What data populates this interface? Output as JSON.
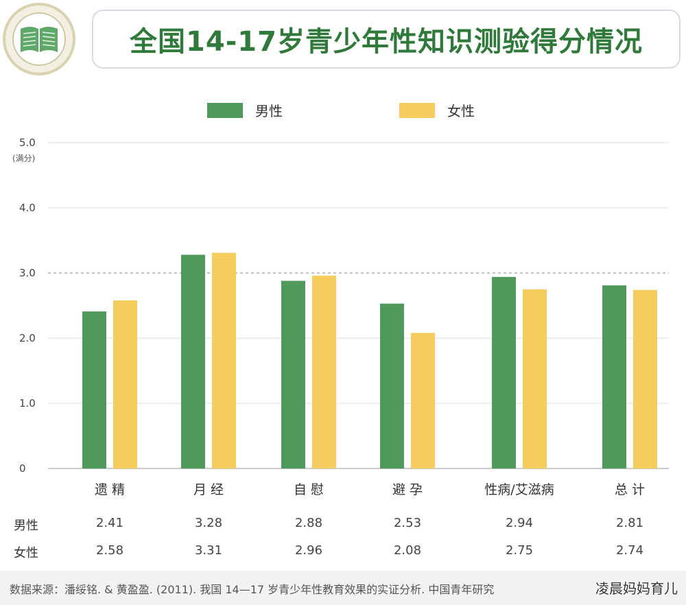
{
  "title": "全国14-17岁青少年性知识测验得分情况",
  "icons": {
    "logo": "open-book-icon"
  },
  "colors": {
    "male": "#4f9a5b",
    "female": "#f5cd5e",
    "title": "#2f7a3a"
  },
  "legend": [
    {
      "label": "男性",
      "color": "#4f9a5b"
    },
    {
      "label": "女性",
      "color": "#f5cd5e"
    }
  ],
  "chart_data": {
    "type": "bar",
    "categories": [
      "遗 精",
      "月 经",
      "自 慰",
      "避 孕",
      "性病/艾滋病",
      "总 计"
    ],
    "series": [
      {
        "name": "男性",
        "values": [
          2.41,
          3.28,
          2.88,
          2.53,
          2.94,
          2.81
        ]
      },
      {
        "name": "女性",
        "values": [
          2.58,
          3.31,
          2.96,
          2.08,
          2.75,
          2.74
        ]
      }
    ],
    "ylim": [
      0,
      5
    ],
    "yticks": [
      "0",
      "1.0",
      "2.0",
      "3.0",
      "4.0",
      "5.0"
    ],
    "ymax_note": "(满分)",
    "reference_line": 3.0,
    "grid": true,
    "legend_position": "top"
  },
  "table": {
    "rows": [
      {
        "label": "男性",
        "values": [
          "2.41",
          "3.28",
          "2.88",
          "2.53",
          "2.94",
          "2.81"
        ]
      },
      {
        "label": "女性",
        "values": [
          "2.58",
          "3.31",
          "2.96",
          "2.08",
          "2.75",
          "2.74"
        ]
      }
    ]
  },
  "source": "数据来源：潘绥铭. & 黄盈盈. (2011). 我国 14—17 岁青少年性教育效果的实证分析. 中国青年研究",
  "watermark": "凌晨妈妈育儿"
}
